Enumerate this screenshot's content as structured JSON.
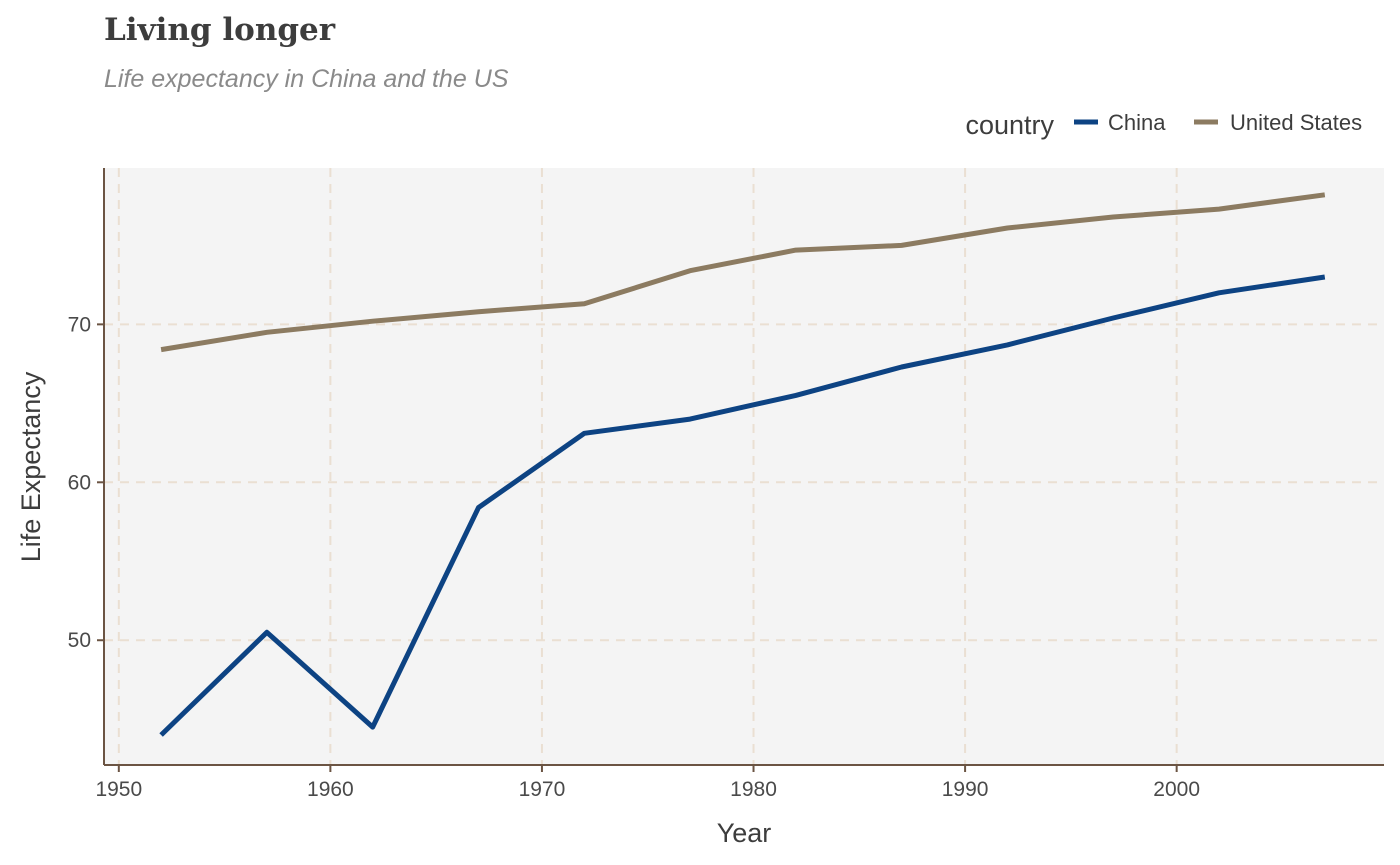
{
  "chart_data": {
    "type": "line",
    "title": "Living longer",
    "subtitle": "Life expectancy in China and the US",
    "xlabel": "Year",
    "ylabel": "Life Expectancy",
    "xlim": [
      1949.3,
      2009.8
    ],
    "ylim": [
      42.1,
      79.9
    ],
    "xticks": [
      1950,
      1960,
      1970,
      1980,
      1990,
      2000
    ],
    "yticks": [
      50,
      60,
      70
    ],
    "grid": true,
    "legend": {
      "title": "country",
      "position": "top-right"
    },
    "x": [
      1952,
      1957,
      1962,
      1967,
      1972,
      1977,
      1982,
      1987,
      1992,
      1997,
      2002,
      2007
    ],
    "series": [
      {
        "name": "China",
        "color": "#0d4383",
        "values": [
          44.0,
          50.5,
          44.5,
          58.4,
          63.1,
          64.0,
          65.5,
          67.3,
          68.7,
          70.4,
          72.0,
          73.0
        ]
      },
      {
        "name": "United States",
        "color": "#8c7b61",
        "values": [
          68.4,
          69.5,
          70.2,
          70.8,
          71.3,
          73.4,
          74.7,
          75.0,
          76.1,
          76.8,
          77.3,
          78.2
        ]
      }
    ],
    "panel_color": "#f4f4f4"
  }
}
